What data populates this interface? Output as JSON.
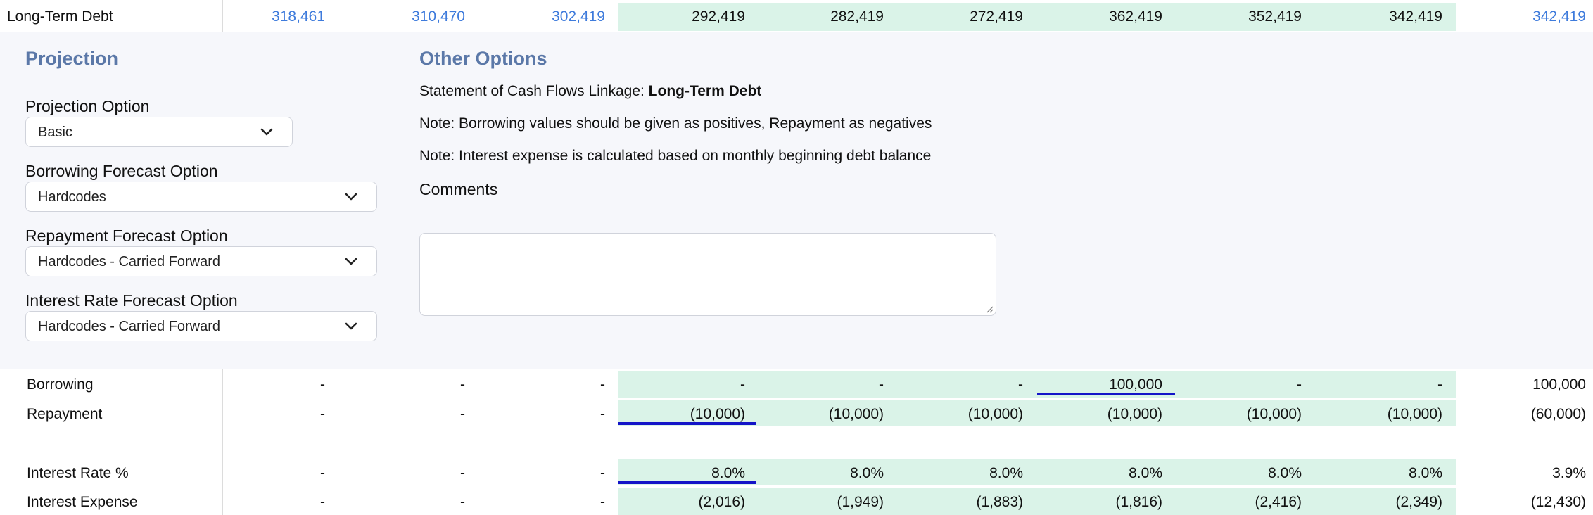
{
  "top_row": {
    "label": "Long-Term Debt",
    "values": [
      "318,461",
      "310,470",
      "302,419",
      "292,419",
      "282,419",
      "272,419",
      "362,419",
      "352,419",
      "342,419"
    ],
    "total": "342,419"
  },
  "projection": {
    "title": "Projection",
    "fields": [
      {
        "label": "Projection Option",
        "value": "Basic"
      },
      {
        "label": "Borrowing Forecast Option",
        "value": "Hardcodes"
      },
      {
        "label": "Repayment Forecast Option",
        "value": "Hardcodes - Carried Forward"
      },
      {
        "label": "Interest Rate Forecast Option",
        "value": "Hardcodes - Carried Forward"
      }
    ]
  },
  "other_options": {
    "title": "Other Options",
    "linkage_prefix": "Statement of Cash Flows Linkage: ",
    "linkage_value": "Long-Term Debt",
    "note1": "Note: Borrowing values should be given as positives, Repayment as negatives",
    "note2": "Note: Interest expense is calculated based on monthly beginning debt balance",
    "comments_label": "Comments",
    "comments_value": ""
  },
  "rows": [
    {
      "label": "Borrowing",
      "values": [
        "-",
        "-",
        "-",
        "-",
        "-",
        "-",
        "100,000",
        "-",
        "-"
      ],
      "total": "100,000"
    },
    {
      "label": "Repayment",
      "values": [
        "-",
        "-",
        "-",
        "(10,000)",
        "(10,000)",
        "(10,000)",
        "(10,000)",
        "(10,000)",
        "(10,000)"
      ],
      "total": "(60,000)"
    },
    {
      "label": "Interest Rate %",
      "values": [
        "-",
        "-",
        "-",
        "8.0%",
        "8.0%",
        "8.0%",
        "8.0%",
        "8.0%",
        "8.0%"
      ],
      "total": "3.9%"
    },
    {
      "label": "Interest Expense",
      "values": [
        "-",
        "-",
        "-",
        "(2,016)",
        "(1,949)",
        "(1,883)",
        "(1,816)",
        "(2,416)",
        "(2,349)"
      ],
      "total": "(12,430)"
    }
  ],
  "colors": {
    "accent": "#3e7bdc",
    "forecast_band": "#daf3e8",
    "panel_bg": "#f6f7fb",
    "title": "#5b78a8",
    "input_marker": "#1414c8"
  }
}
